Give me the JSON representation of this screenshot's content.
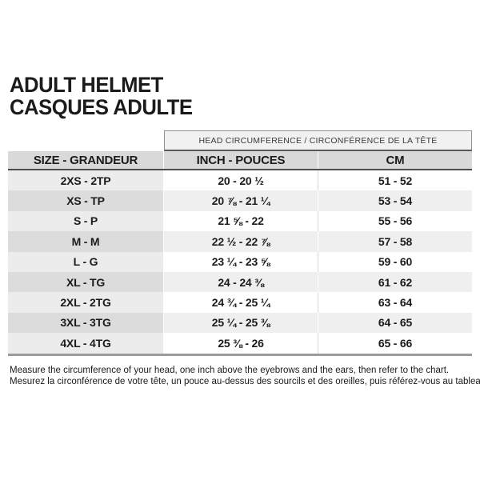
{
  "title": {
    "line1": "ADULT HELMET",
    "line2": "CASQUES ADULTE"
  },
  "table": {
    "span_header": "HEAD CIRCUMFERENCE / CIRCONFÉRENCE DE LA TÊTE",
    "columns": [
      "SIZE - GRANDEUR",
      "INCH - POUCES",
      "CM"
    ],
    "rows": [
      {
        "size": "2XS - 2TP",
        "inch": "20 - 20 ½",
        "cm": "51 - 52"
      },
      {
        "size": "XS - TP",
        "inch": "20 ⅞ - 21 ¼",
        "cm": "53 - 54"
      },
      {
        "size": "S - P",
        "inch": "21 ⅝ - 22",
        "cm": "55 - 56"
      },
      {
        "size": "M - M",
        "inch": "22 ½ - 22 ⅞",
        "cm": "57 - 58"
      },
      {
        "size": "L - G",
        "inch": "23 ¼ - 23 ⅝",
        "cm": "59 - 60"
      },
      {
        "size": "XL - TG",
        "inch": "24 - 24 ⅜",
        "cm": "61 - 62"
      },
      {
        "size": "2XL - 2TG",
        "inch": "24 ¾ - 25 ¼",
        "cm": "63 - 64"
      },
      {
        "size": "3XL - 3TG",
        "inch": "25 ¼ - 25 ⅜",
        "cm": "64 - 65"
      },
      {
        "size": "4XL - 4TG",
        "inch": "25 ⅜ - 26",
        "cm": "65 - 66"
      }
    ]
  },
  "footer": {
    "line1": "Measure the circumference of your head, one inch above the eyebrows and the ears, then refer to the chart.",
    "line2": "Mesurez la circonférence de votre tête, un pouce au-dessus des sourcils et des oreilles, puis référez-vous au tableau."
  },
  "colors": {
    "header_row_bg": "#d9d9d9",
    "span_header_bg": "#f1f1f1",
    "row_bg": "#ffffff",
    "row_alt_bg": "#efefef",
    "size_col_bg": "#ececec",
    "size_col_alt_bg": "#dcdcdc",
    "header_border": "#4d4d4d",
    "bottom_border": "#9b9b9b",
    "text": "#1b1b1b"
  }
}
